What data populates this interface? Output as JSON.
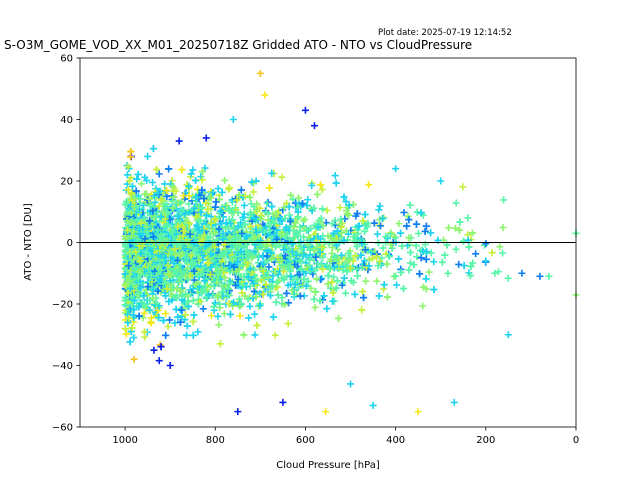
{
  "chart_data": {
    "type": "scatter",
    "title": "S-O3M_GOME_VOD_XX_M01_20250718Z Gridded ATO - NTO vs CloudPressure",
    "subtitle": "Plot date: 2025-07-19 12:14:52",
    "xlabel": "Cloud Pressure [hPa]",
    "ylabel": "ATO - NTO [DU]",
    "xlim": [
      1100,
      0
    ],
    "ylim": [
      -60,
      60
    ],
    "x_ticks": [
      1000,
      800,
      600,
      400,
      200,
      0
    ],
    "y_ticks": [
      -60,
      -40,
      -20,
      0,
      20,
      40,
      60
    ],
    "x_tick_labels": [
      "1000",
      "800",
      "600",
      "400",
      "200",
      "0"
    ],
    "y_tick_labels": [
      "−60",
      "−40",
      "−20",
      "0",
      "20",
      "40",
      "60"
    ],
    "reference_line_y": 0,
    "marker": "plus",
    "grid": false,
    "colors": [
      "#0a1fe8",
      "#0c7df2",
      "#1ed3f0",
      "#59f5a8",
      "#8ef56f",
      "#c6f03c",
      "#f5e81a",
      "#f5c21a"
    ],
    "sample_points": [
      {
        "x": 1000,
        "y": -4
      },
      {
        "x": 995,
        "y": 22
      },
      {
        "x": 980,
        "y": -38
      },
      {
        "x": 950,
        "y": 28
      },
      {
        "x": 900,
        "y": -40
      },
      {
        "x": 880,
        "y": 33
      },
      {
        "x": 820,
        "y": 34
      },
      {
        "x": 760,
        "y": 40
      },
      {
        "x": 750,
        "y": -55
      },
      {
        "x": 700,
        "y": 55
      },
      {
        "x": 690,
        "y": 48
      },
      {
        "x": 650,
        "y": -52
      },
      {
        "x": 600,
        "y": 43
      },
      {
        "x": 580,
        "y": 38
      },
      {
        "x": 555,
        "y": -55
      },
      {
        "x": 500,
        "y": -46
      },
      {
        "x": 450,
        "y": -53
      },
      {
        "x": 400,
        "y": 24
      },
      {
        "x": 350,
        "y": -55
      },
      {
        "x": 300,
        "y": 20
      },
      {
        "x": 270,
        "y": -52
      },
      {
        "x": 240,
        "y": 8
      },
      {
        "x": 200,
        "y": -6
      },
      {
        "x": 180,
        "y": -10
      },
      {
        "x": 150,
        "y": -30
      },
      {
        "x": 120,
        "y": -10
      },
      {
        "x": 80,
        "y": -11
      },
      {
        "x": 60,
        "y": -11
      },
      {
        "x": 0,
        "y": 3
      },
      {
        "x": 0,
        "y": -17
      }
    ]
  }
}
